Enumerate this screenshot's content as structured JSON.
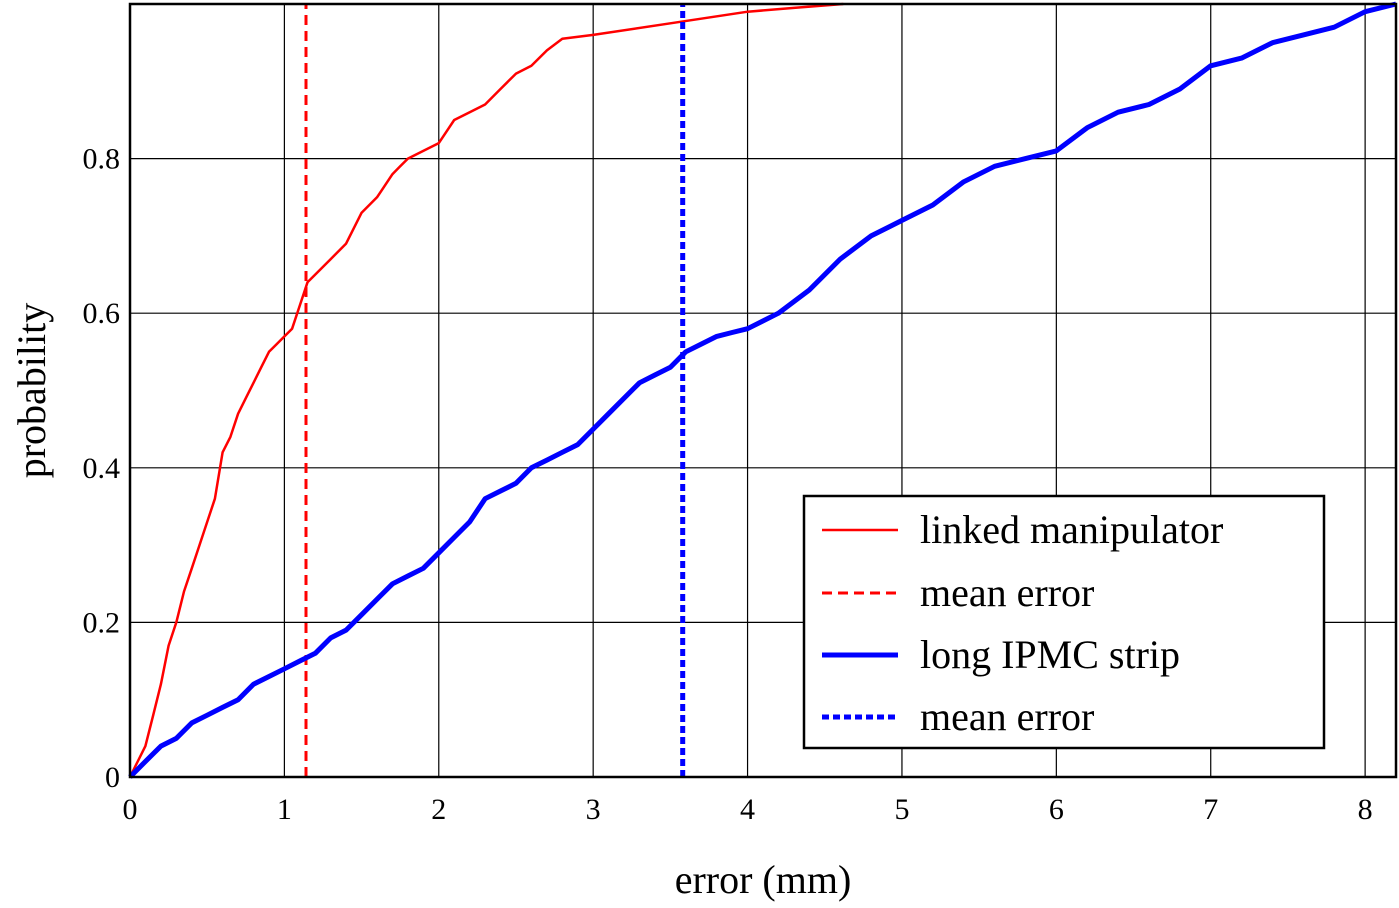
{
  "chart_data": {
    "type": "line",
    "title": "",
    "xlabel": "error (mm)",
    "ylabel": "probability",
    "xlim": [
      0,
      8.2
    ],
    "ylim": [
      0,
      1.0
    ],
    "xticks": [
      0,
      1,
      2,
      3,
      4,
      5,
      6,
      7,
      8
    ],
    "xtick_labels": [
      "0",
      "1",
      "2",
      "3",
      "4",
      "5",
      "6",
      "7",
      "8"
    ],
    "yticks": [
      0,
      0.2,
      0.4,
      0.6,
      0.8
    ],
    "ytick_labels": [
      "0",
      "0.2",
      "0.4",
      "0.6",
      "0.8"
    ],
    "grid": true,
    "legend_position": "bottom-right",
    "series": [
      {
        "name": "linked manipulator",
        "color": "#ff0000",
        "style": "solid",
        "x": [
          0,
          0.05,
          0.1,
          0.15,
          0.2,
          0.25,
          0.3,
          0.35,
          0.4,
          0.45,
          0.5,
          0.55,
          0.6,
          0.65,
          0.7,
          0.75,
          0.8,
          0.85,
          0.9,
          0.95,
          1.0,
          1.05,
          1.1,
          1.15,
          1.2,
          1.3,
          1.4,
          1.5,
          1.6,
          1.7,
          1.75,
          1.8,
          1.9,
          2.0,
          2.1,
          2.2,
          2.3,
          2.4,
          2.5,
          2.6,
          2.7,
          2.8,
          3.0,
          3.5,
          4.0,
          4.3,
          4.62
        ],
        "y": [
          0,
          0.02,
          0.04,
          0.08,
          0.12,
          0.17,
          0.2,
          0.24,
          0.27,
          0.3,
          0.33,
          0.36,
          0.42,
          0.44,
          0.47,
          0.49,
          0.51,
          0.53,
          0.55,
          0.56,
          0.57,
          0.58,
          0.61,
          0.64,
          0.65,
          0.67,
          0.69,
          0.73,
          0.75,
          0.78,
          0.79,
          0.8,
          0.81,
          0.82,
          0.85,
          0.86,
          0.87,
          0.89,
          0.91,
          0.92,
          0.94,
          0.955,
          0.96,
          0.975,
          0.99,
          0.995,
          1.0
        ]
      },
      {
        "name": "mean error",
        "color": "#ff0000",
        "style": "dashed",
        "x": [
          1.14,
          1.14
        ],
        "y": [
          0,
          1.0
        ]
      },
      {
        "name": "long IPMC strip",
        "color": "#0000ff",
        "style": "solid",
        "x": [
          0,
          0.1,
          0.2,
          0.3,
          0.4,
          0.5,
          0.6,
          0.7,
          0.8,
          0.9,
          1.0,
          1.1,
          1.2,
          1.3,
          1.4,
          1.5,
          1.6,
          1.7,
          1.8,
          1.9,
          2.0,
          2.1,
          2.2,
          2.3,
          2.4,
          2.5,
          2.6,
          2.7,
          2.8,
          2.9,
          3.0,
          3.1,
          3.2,
          3.3,
          3.4,
          3.5,
          3.6,
          3.7,
          3.8,
          3.9,
          4.0,
          4.2,
          4.4,
          4.6,
          4.8,
          5.0,
          5.2,
          5.4,
          5.6,
          5.8,
          6.0,
          6.2,
          6.4,
          6.6,
          6.8,
          7.0,
          7.2,
          7.4,
          7.6,
          7.8,
          8.0,
          8.2
        ],
        "y": [
          0,
          0.02,
          0.04,
          0.05,
          0.07,
          0.08,
          0.09,
          0.1,
          0.12,
          0.13,
          0.14,
          0.15,
          0.16,
          0.18,
          0.19,
          0.21,
          0.23,
          0.25,
          0.26,
          0.27,
          0.29,
          0.31,
          0.33,
          0.36,
          0.37,
          0.38,
          0.4,
          0.41,
          0.42,
          0.43,
          0.45,
          0.47,
          0.49,
          0.51,
          0.52,
          0.53,
          0.55,
          0.56,
          0.57,
          0.575,
          0.58,
          0.6,
          0.63,
          0.67,
          0.7,
          0.72,
          0.74,
          0.77,
          0.79,
          0.8,
          0.81,
          0.84,
          0.86,
          0.87,
          0.89,
          0.92,
          0.93,
          0.95,
          0.96,
          0.97,
          0.99,
          1.0
        ]
      },
      {
        "name": "mean error",
        "color": "#0000ff",
        "style": "dotted",
        "x": [
          3.58,
          3.58
        ],
        "y": [
          0,
          1.0
        ]
      }
    ]
  }
}
